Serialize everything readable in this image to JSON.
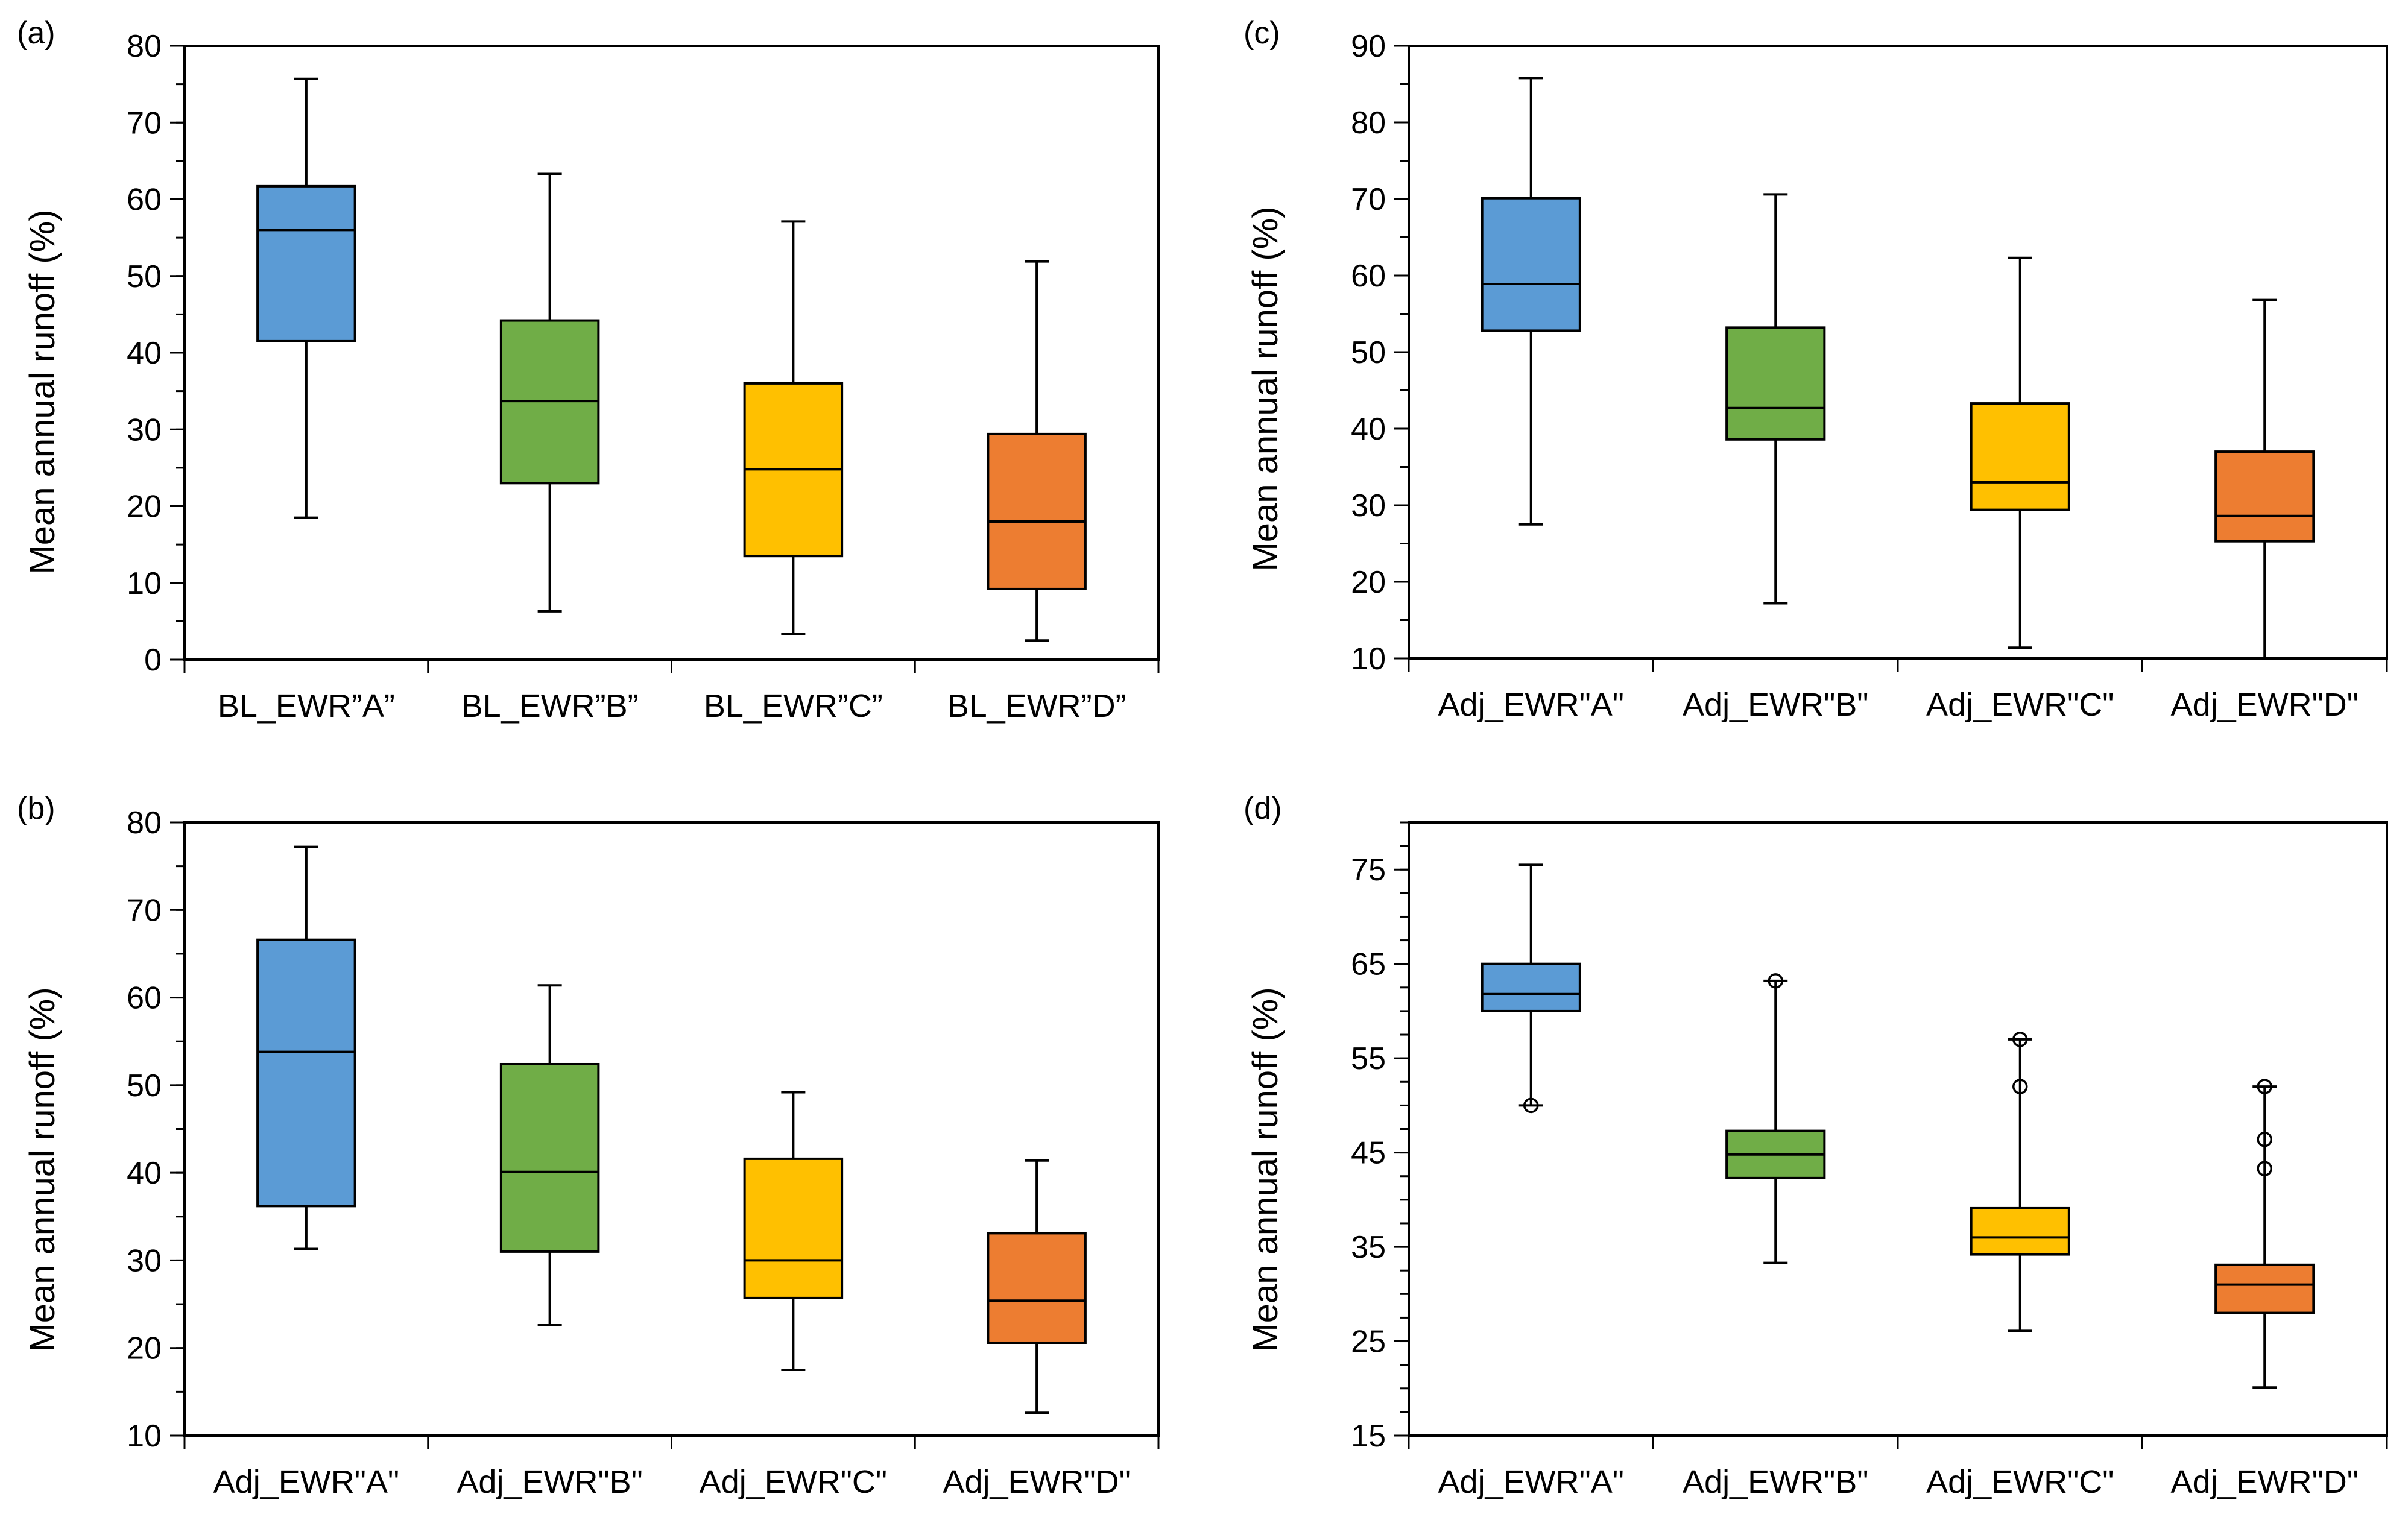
{
  "panels": [
    {
      "label": "(a)",
      "ylabel": "Mean annual runoff (%)",
      "chart_data": {
        "type": "box",
        "categories": [
          "BL_EWR”A”",
          "BL_EWR”B”",
          "BL_EWR”C”",
          "BL_EWR”D”"
        ],
        "ylim": [
          0,
          80
        ],
        "yticks": [
          0,
          10,
          20,
          30,
          40,
          50,
          60,
          70,
          80
        ],
        "minor_step": 5,
        "colors": [
          "#5b9bd5",
          "#70ad47",
          "#ffc000",
          "#ed7d31"
        ],
        "boxes": [
          {
            "min": 18.5,
            "q1": 41.5,
            "median": 56.0,
            "q3": 61.7,
            "max": 75.7,
            "outliers": []
          },
          {
            "min": 6.3,
            "q1": 23.0,
            "median": 33.7,
            "q3": 44.2,
            "max": 63.3,
            "outliers": []
          },
          {
            "min": 3.3,
            "q1": 13.5,
            "median": 24.8,
            "q3": 36.0,
            "max": 57.1,
            "outliers": []
          },
          {
            "min": 2.5,
            "q1": 9.2,
            "median": 18.0,
            "q3": 29.4,
            "max": 51.9,
            "outliers": []
          }
        ]
      }
    },
    {
      "label": "(c)",
      "ylabel": "Mean annual runoff (%)",
      "chart_data": {
        "type": "box",
        "categories": [
          "Adj_EWR\"A\"",
          "Adj_EWR\"B\"",
          "Adj_EWR\"C\"",
          "Adj_EWR\"D\""
        ],
        "ylim": [
          10,
          90
        ],
        "yticks": [
          10,
          20,
          30,
          40,
          50,
          60,
          70,
          80,
          90
        ],
        "minor_step": 5,
        "colors": [
          "#5b9bd5",
          "#70ad47",
          "#ffc000",
          "#ed7d31"
        ],
        "boxes": [
          {
            "min": 27.5,
            "q1": 52.8,
            "median": 58.9,
            "q3": 70.1,
            "max": 85.8,
            "outliers": []
          },
          {
            "min": 17.2,
            "q1": 38.6,
            "median": 42.7,
            "q3": 53.2,
            "max": 70.6,
            "outliers": []
          },
          {
            "min": 11.4,
            "q1": 29.4,
            "median": 33.0,
            "q3": 43.3,
            "max": 62.3,
            "outliers": []
          },
          {
            "min": 10.0,
            "q1": 25.3,
            "median": 28.6,
            "q3": 37.0,
            "max": 56.8,
            "outliers": []
          }
        ]
      }
    },
    {
      "label": "(b)",
      "ylabel": "Mean annual runoff (%)",
      "chart_data": {
        "type": "box",
        "categories": [
          "Adj_EWR\"A\"",
          "Adj_EWR\"B\"",
          "Adj_EWR\"C\"",
          "Adj_EWR\"D\""
        ],
        "ylim": [
          10,
          80
        ],
        "yticks": [
          10,
          20,
          30,
          40,
          50,
          60,
          70,
          80
        ],
        "minor_step": 5,
        "colors": [
          "#5b9bd5",
          "#70ad47",
          "#ffc000",
          "#ed7d31"
        ],
        "boxes": [
          {
            "min": 31.3,
            "q1": 36.2,
            "median": 53.8,
            "q3": 66.6,
            "max": 77.2,
            "outliers": []
          },
          {
            "min": 22.6,
            "q1": 31.0,
            "median": 40.1,
            "q3": 52.4,
            "max": 61.4,
            "outliers": []
          },
          {
            "min": 17.5,
            "q1": 25.7,
            "median": 30.0,
            "q3": 41.6,
            "max": 49.2,
            "outliers": []
          },
          {
            "min": 12.6,
            "q1": 20.6,
            "median": 25.4,
            "q3": 33.1,
            "max": 41.4,
            "outliers": []
          }
        ]
      }
    },
    {
      "label": "(d)",
      "ylabel": "Mean annual runoff (%)",
      "chart_data": {
        "type": "box",
        "categories": [
          "Adj_EWR\"A\"",
          "Adj_EWR\"B\"",
          "Adj_EWR\"C\"",
          "Adj_EWR\"D\""
        ],
        "ylim": [
          15,
          80
        ],
        "yticks": [
          15,
          25,
          35,
          45,
          55,
          65,
          75
        ],
        "minor_step": 2.5,
        "colors": [
          "#5b9bd5",
          "#70ad47",
          "#ffc000",
          "#ed7d31"
        ],
        "boxes": [
          {
            "min": 50.0,
            "q1": 60.0,
            "median": 61.8,
            "q3": 65.0,
            "max": 75.5,
            "outliers": [
              50.0
            ]
          },
          {
            "min": 33.3,
            "q1": 42.3,
            "median": 44.8,
            "q3": 47.3,
            "max": 63.2,
            "outliers": [
              63.2
            ]
          },
          {
            "min": 26.1,
            "q1": 34.2,
            "median": 36.0,
            "q3": 39.1,
            "max": 57.0,
            "outliers": [
              52.0,
              57.0
            ]
          },
          {
            "min": 20.1,
            "q1": 28.0,
            "median": 31.0,
            "q3": 33.1,
            "max": 52.0,
            "outliers": [
              43.3,
              46.4,
              52.0
            ]
          }
        ]
      }
    }
  ]
}
